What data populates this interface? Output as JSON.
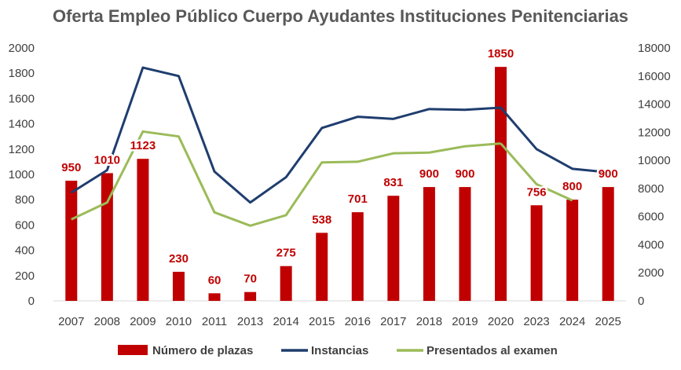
{
  "chart_data": {
    "type": "bar",
    "title": "Oferta Empleo Público Cuerpo Ayudantes Instituciones Penitenciarias",
    "categories": [
      "2007",
      "2008",
      "2009",
      "2010",
      "2011",
      "2013",
      "2014",
      "2015",
      "2016",
      "2017",
      "2018",
      "2019",
      "2020",
      "2023",
      "2024",
      "2025"
    ],
    "series": [
      {
        "name": "Número de plazas",
        "type": "bar",
        "axis": "left",
        "color": "#c00000",
        "values": [
          950,
          1010,
          1123,
          230,
          60,
          70,
          275,
          538,
          701,
          831,
          900,
          900,
          1850,
          756,
          800,
          900
        ],
        "labels": [
          "950",
          "1010",
          "1123",
          "230",
          "60",
          "70",
          "275",
          "538",
          "701",
          "831",
          "900",
          "900",
          "1850",
          "756",
          "800",
          "900"
        ]
      },
      {
        "name": "Instancias",
        "type": "line",
        "axis": "right",
        "color": "#1f3d6e",
        "values": [
          7700,
          9300,
          16600,
          16000,
          9200,
          7000,
          8800,
          12300,
          13100,
          12950,
          13650,
          13600,
          13750,
          10800,
          9400,
          9150
        ]
      },
      {
        "name": "Presentados al examen",
        "type": "line",
        "axis": "right",
        "color": "#9bbb59",
        "values": [
          5800,
          7000,
          12050,
          11700,
          6300,
          5350,
          6100,
          9850,
          9900,
          10500,
          10550,
          11000,
          11200,
          null,
          null,
          null
        ],
        "extra": {
          "2023": 8300,
          "2024": 7150
        }
      }
    ],
    "y_left": {
      "min": 0,
      "max": 2000,
      "step": 200,
      "ticks": [
        "0",
        "200",
        "400",
        "600",
        "800",
        "1000",
        "1200",
        "1400",
        "1600",
        "1800",
        "2000"
      ]
    },
    "y_right": {
      "min": 0,
      "max": 18000,
      "step": 2000,
      "ticks": [
        "0",
        "2000",
        "4000",
        "6000",
        "8000",
        "10000",
        "12000",
        "14000",
        "16000",
        "18000"
      ]
    },
    "grid": false,
    "legend_position": "bottom"
  }
}
